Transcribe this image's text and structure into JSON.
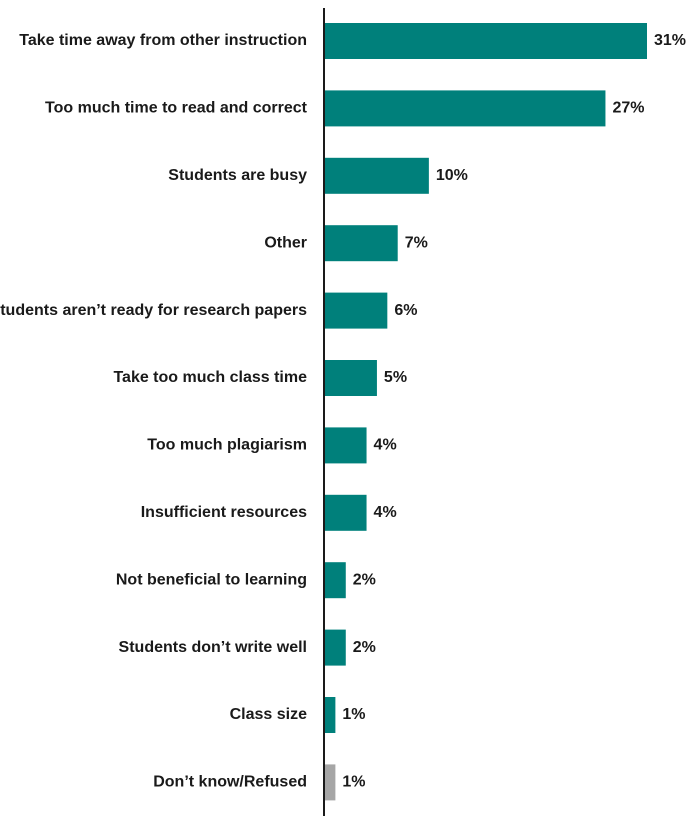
{
  "chart_data": {
    "type": "bar",
    "orientation": "horizontal",
    "categories": [
      "Take time away from other instruction",
      "Too much time to read and correct",
      "Students are busy",
      "Other",
      "Students aren’t ready for research papers",
      "Take too much class time",
      "Too much plagiarism",
      "Insufficient resources",
      "Not beneficial to learning",
      "Students don’t write well",
      "Class size",
      "Don’t know/Refused"
    ],
    "values": [
      31,
      27,
      10,
      7,
      6,
      5,
      4,
      4,
      2,
      2,
      1,
      1
    ],
    "value_labels": [
      "31%",
      "27%",
      "10%",
      "7%",
      "6%",
      "5%",
      "4%",
      "4%",
      "2%",
      "2%",
      "1%",
      "1%"
    ],
    "unit": "%",
    "xlim": [
      0,
      31
    ],
    "grid": false,
    "legend": "none",
    "colors": {
      "bar": "#00807b",
      "bar_secondary": "#a6a6a6",
      "axis": "#1a1a1a",
      "text": "#1a1a1a"
    }
  }
}
